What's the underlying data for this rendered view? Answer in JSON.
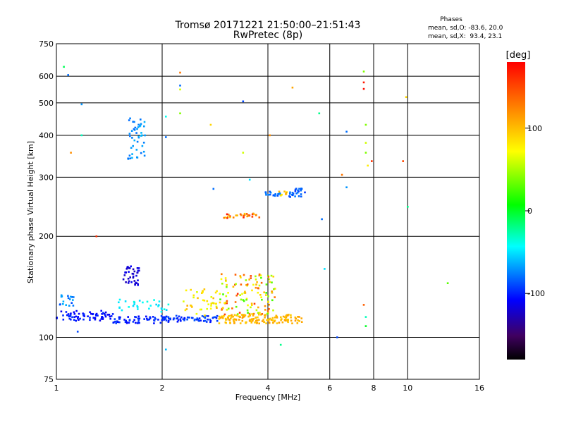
{
  "chart_data": {
    "type": "scatter",
    "title": "Tromsø 20171221 21:50:00–21:51:43",
    "subtitle": "RwPretec (8p)",
    "xlabel": "Frequency [MHz]",
    "ylabel": "Stationary phase Virtual Height [km]",
    "x_scale": "log",
    "y_scale": "log",
    "xlim": [
      1,
      16
    ],
    "ylim": [
      75,
      750
    ],
    "x_ticks": [
      1,
      2,
      4,
      6,
      8,
      10,
      16
    ],
    "x_tick_labels": [
      "1",
      "2",
      "4",
      "6",
      "8",
      "10",
      "16"
    ],
    "y_ticks": [
      75,
      100,
      200,
      300,
      400,
      500,
      600,
      750
    ],
    "y_tick_labels": [
      "75",
      "100",
      "200",
      "300",
      "400",
      "500",
      "600",
      "750"
    ],
    "grid": true,
    "stats": {
      "heading": "Phases",
      "line_o": "mean, sd,O: -83.6, 20.0",
      "line_x": "mean, sd,X:  93.4, 23.1"
    },
    "colorbar": {
      "label": "[deg]",
      "range": [
        -180,
        180
      ],
      "ticks": [
        100,
        0,
        -100
      ],
      "tick_labels": [
        "100",
        "0",
        "-100"
      ]
    },
    "clusters": [
      {
        "f": [
          1.0,
          1.45
        ],
        "h": [
          112,
          120
        ],
        "phase": [
          -115,
          -95
        ],
        "n": 70
      },
      {
        "f": [
          1.0,
          1.12
        ],
        "h": [
          124,
          134
        ],
        "phase": [
          -90,
          -60
        ],
        "n": 18
      },
      {
        "f": [
          1.45,
          2.05
        ],
        "h": [
          110,
          116
        ],
        "phase": [
          -110,
          -90
        ],
        "n": 60
      },
      {
        "f": [
          1.5,
          2.1
        ],
        "h": [
          119,
          130
        ],
        "phase": [
          -55,
          -35
        ],
        "n": 30
      },
      {
        "f": [
          1.55,
          1.72
        ],
        "h": [
          143,
          163
        ],
        "phase": [
          -130,
          -110
        ],
        "n": 40
      },
      {
        "f": [
          1.6,
          1.8
        ],
        "h": [
          340,
          460
        ],
        "phase": [
          -80,
          -60
        ],
        "n": 45
      },
      {
        "f": [
          2.0,
          2.9
        ],
        "h": [
          111,
          116
        ],
        "phase": [
          -105,
          -85
        ],
        "n": 60
      },
      {
        "f": [
          2.3,
          2.9
        ],
        "h": [
          116,
          140
        ],
        "phase": [
          60,
          110
        ],
        "n": 40
      },
      {
        "f": [
          2.9,
          5.0
        ],
        "h": [
          110,
          117
        ],
        "phase": [
          90,
          115
        ],
        "n": 150
      },
      {
        "f": [
          2.9,
          4.2
        ],
        "h": [
          117,
          155
        ],
        "phase": [
          20,
          165
        ],
        "n": 120
      },
      {
        "f": [
          3.0,
          3.8
        ],
        "h": [
          226,
          234
        ],
        "phase": [
          90,
          175
        ],
        "n": 30
      },
      {
        "f": [
          3.9,
          4.4
        ],
        "h": [
          264,
          272
        ],
        "phase": [
          -90,
          -70
        ],
        "n": 20
      },
      {
        "f": [
          4.3,
          4.6
        ],
        "h": [
          264,
          272
        ],
        "phase": [
          70,
          115
        ],
        "n": 8
      },
      {
        "f": [
          4.6,
          5.1
        ],
        "h": [
          262,
          278
        ],
        "phase": [
          -95,
          -75
        ],
        "n": 25
      }
    ],
    "points": [
      {
        "f": 1.05,
        "h": 640,
        "phase": -10
      },
      {
        "f": 1.08,
        "h": 605,
        "phase": -80
      },
      {
        "f": 1.18,
        "h": 495,
        "phase": -70
      },
      {
        "f": 1.18,
        "h": 400,
        "phase": -30
      },
      {
        "f": 1.1,
        "h": 355,
        "phase": 120
      },
      {
        "f": 1.3,
        "h": 200,
        "phase": 160
      },
      {
        "f": 2.05,
        "h": 455,
        "phase": -40
      },
      {
        "f": 2.05,
        "h": 395,
        "phase": -80
      },
      {
        "f": 2.25,
        "h": 615,
        "phase": 130
      },
      {
        "f": 2.25,
        "h": 563,
        "phase": -80
      },
      {
        "f": 2.25,
        "h": 548,
        "phase": 60
      },
      {
        "f": 2.25,
        "h": 465,
        "phase": 40
      },
      {
        "f": 2.75,
        "h": 430,
        "phase": 90
      },
      {
        "f": 2.8,
        "h": 277,
        "phase": -80
      },
      {
        "f": 3.4,
        "h": 505,
        "phase": -90
      },
      {
        "f": 3.4,
        "h": 355,
        "phase": 60
      },
      {
        "f": 3.55,
        "h": 295,
        "phase": -50
      },
      {
        "f": 4.05,
        "h": 400,
        "phase": 120
      },
      {
        "f": 4.7,
        "h": 555,
        "phase": 110
      },
      {
        "f": 5.6,
        "h": 465,
        "phase": -20
      },
      {
        "f": 5.7,
        "h": 225,
        "phase": -80
      },
      {
        "f": 5.8,
        "h": 160,
        "phase": -50
      },
      {
        "f": 6.3,
        "h": 100,
        "phase": -90
      },
      {
        "f": 6.5,
        "h": 305,
        "phase": 130
      },
      {
        "f": 6.7,
        "h": 280,
        "phase": -70
      },
      {
        "f": 6.7,
        "h": 410,
        "phase": -80
      },
      {
        "f": 7.5,
        "h": 620,
        "phase": 40
      },
      {
        "f": 7.5,
        "h": 575,
        "phase": 170
      },
      {
        "f": 7.5,
        "h": 550,
        "phase": 175
      },
      {
        "f": 7.6,
        "h": 430,
        "phase": 40
      },
      {
        "f": 7.6,
        "h": 380,
        "phase": 60
      },
      {
        "f": 7.6,
        "h": 355,
        "phase": 40
      },
      {
        "f": 7.7,
        "h": 325,
        "phase": 80
      },
      {
        "f": 7.9,
        "h": 335,
        "phase": 160
      },
      {
        "f": 7.5,
        "h": 125,
        "phase": 140
      },
      {
        "f": 7.6,
        "h": 115,
        "phase": -30
      },
      {
        "f": 7.6,
        "h": 108,
        "phase": 0
      },
      {
        "f": 9.7,
        "h": 335,
        "phase": 150
      },
      {
        "f": 9.9,
        "h": 520,
        "phase": 90
      },
      {
        "f": 10.0,
        "h": 245,
        "phase": -20
      },
      {
        "f": 13.0,
        "h": 145,
        "phase": 30
      },
      {
        "f": 2.05,
        "h": 92,
        "phase": -60
      },
      {
        "f": 4.35,
        "h": 95,
        "phase": -20
      },
      {
        "f": 1.15,
        "h": 104,
        "phase": -90
      }
    ]
  }
}
